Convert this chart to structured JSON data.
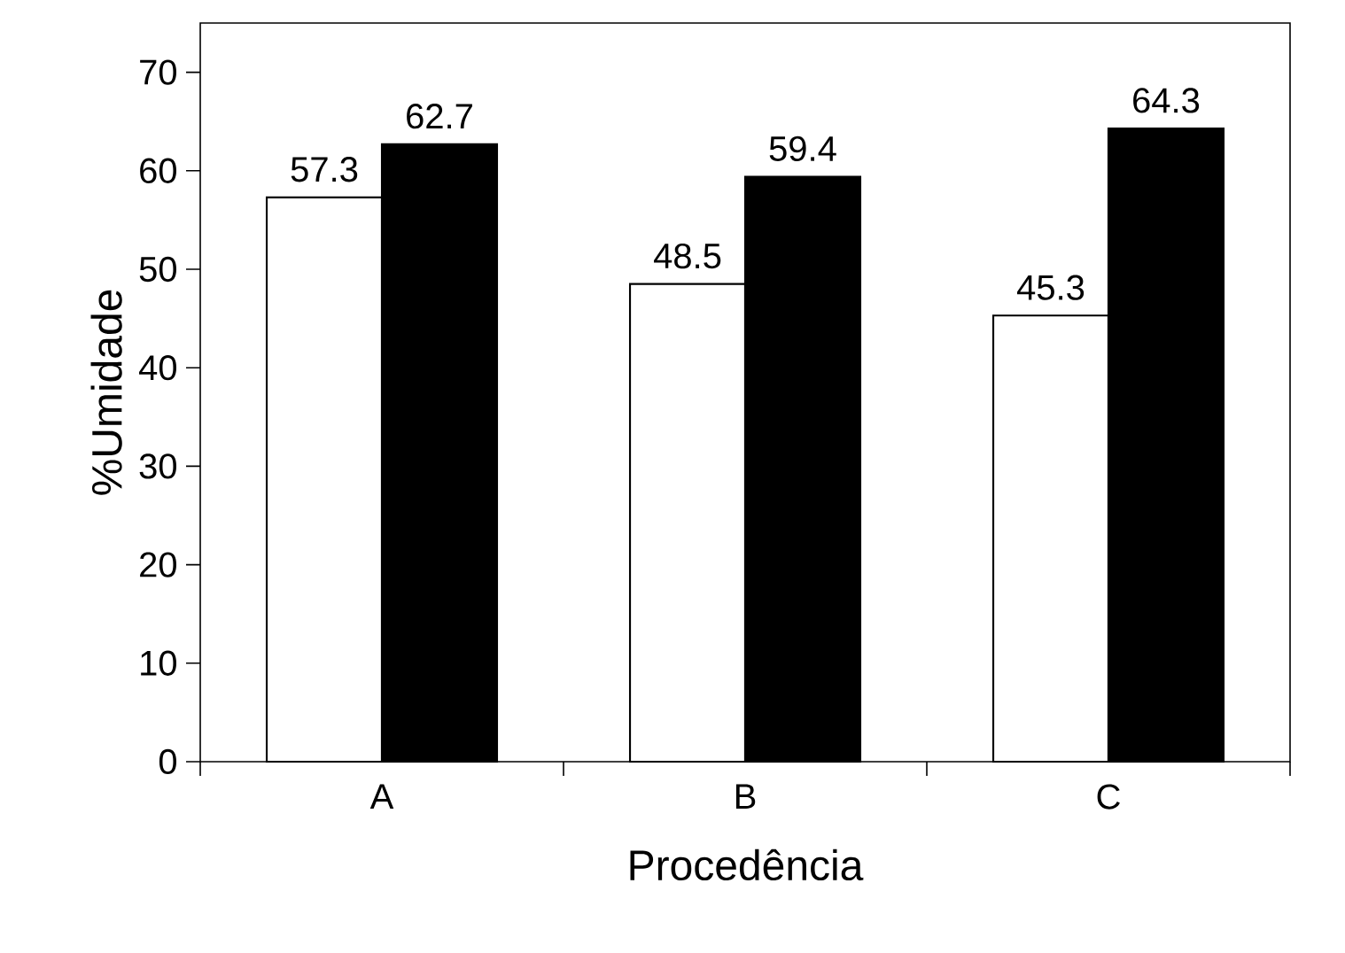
{
  "chart_data": {
    "type": "bar",
    "xlabel": "Procedência",
    "ylabel": "%Umidade",
    "categories": [
      "A",
      "B",
      "C"
    ],
    "series": [
      {
        "color": "#ffffff",
        "values": [
          57.3,
          48.5,
          45.3
        ]
      },
      {
        "color": "#000000",
        "values": [
          62.7,
          59.4,
          64.3
        ]
      }
    ],
    "ylim": [
      0,
      75
    ],
    "yticks": [
      0,
      10,
      20,
      30,
      40,
      50,
      60,
      70
    ],
    "data_labels": true
  }
}
